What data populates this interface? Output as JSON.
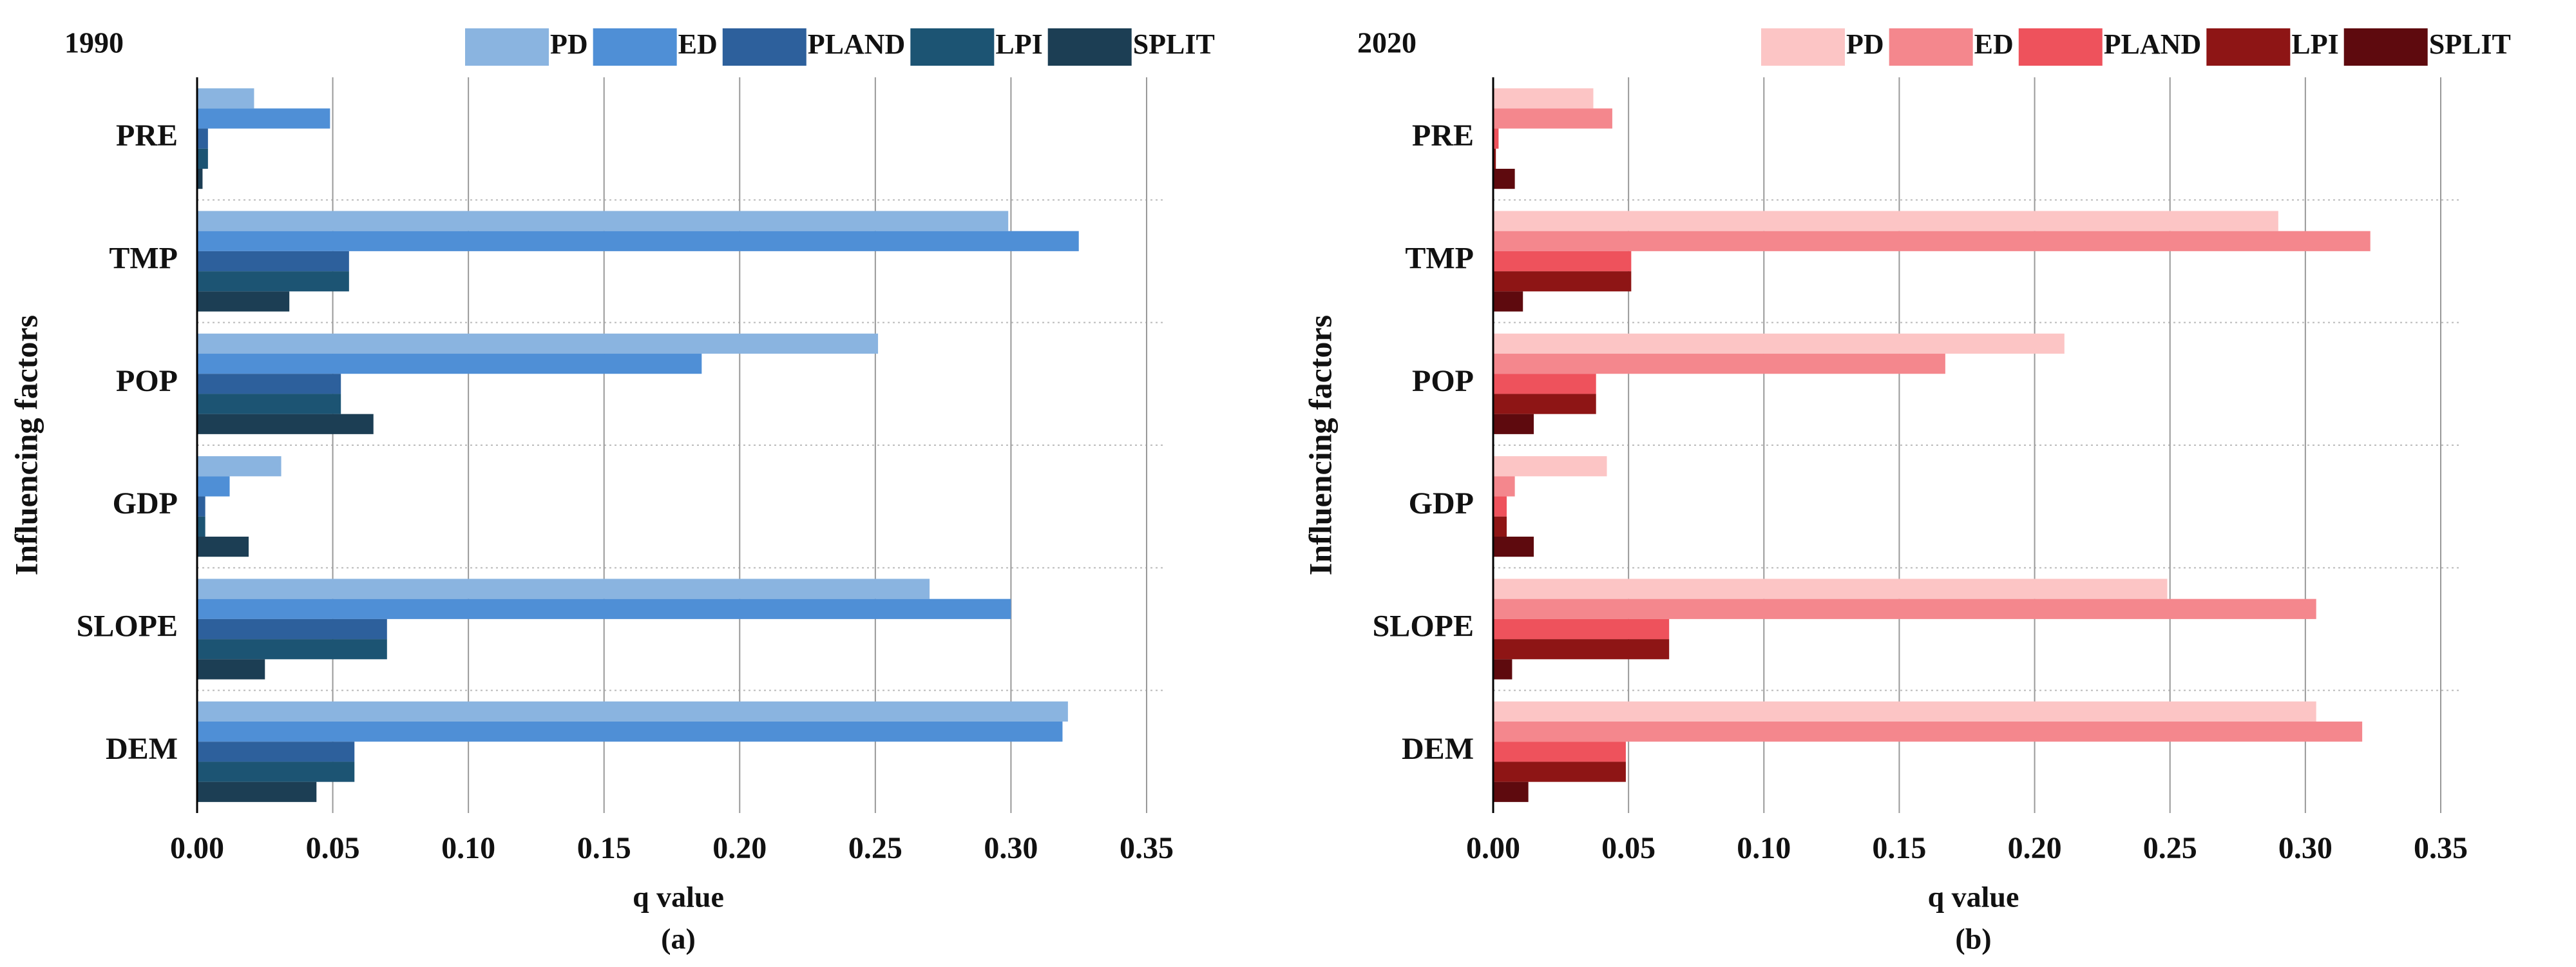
{
  "chart_data": [
    {
      "type": "bar",
      "orientation": "horizontal",
      "title": "1990",
      "caption": "(a)",
      "xlabel": "q value",
      "ylabel": "Influencing factors",
      "categories": [
        "PRE",
        "TMP",
        "POP",
        "GDP",
        "SLOPE",
        "DEM"
      ],
      "series": [
        {
          "name": "PD",
          "color": "#8ab4e0",
          "values": [
            0.021,
            0.299,
            0.251,
            0.031,
            0.27,
            0.321
          ]
        },
        {
          "name": "ED",
          "color": "#4f8fd6",
          "values": [
            0.049,
            0.325,
            0.186,
            0.012,
            0.3,
            0.319
          ]
        },
        {
          "name": "PLAND",
          "color": "#2d609c",
          "values": [
            0.004,
            0.056,
            0.053,
            0.003,
            0.07,
            0.058
          ]
        },
        {
          "name": "LPI",
          "color": "#1c5473",
          "values": [
            0.004,
            0.056,
            0.053,
            0.003,
            0.07,
            0.058
          ]
        },
        {
          "name": "SPLIT",
          "color": "#1c3e54",
          "values": [
            0.002,
            0.034,
            0.065,
            0.019,
            0.025,
            0.044
          ]
        }
      ],
      "xlim": [
        0,
        0.35
      ],
      "xticks": [
        {
          "value": 0,
          "label": "0.00"
        },
        {
          "value": 0.05,
          "label": "0.05"
        },
        {
          "value": 0.1,
          "label": "0.10"
        },
        {
          "value": 0.15,
          "label": "0.15"
        },
        {
          "value": 0.2,
          "label": "0.20"
        },
        {
          "value": 0.25,
          "label": "0.25"
        },
        {
          "value": 0.3,
          "label": "0.30"
        },
        {
          "value": 0.35,
          "label": "0.35"
        }
      ],
      "grid": true
    },
    {
      "type": "bar",
      "orientation": "horizontal",
      "title": "2020",
      "caption": "(b)",
      "xlabel": "q value",
      "ylabel": "Influencing factors",
      "categories": [
        "PRE",
        "TMP",
        "POP",
        "GDP",
        "SLOPE",
        "DEM"
      ],
      "series": [
        {
          "name": "PD",
          "color": "#fcc5c5",
          "values": [
            0.037,
            0.29,
            0.211,
            0.042,
            0.249,
            0.304
          ]
        },
        {
          "name": "ED",
          "color": "#f4878d",
          "values": [
            0.044,
            0.324,
            0.167,
            0.008,
            0.304,
            0.321
          ]
        },
        {
          "name": "PLAND",
          "color": "#ee525c",
          "values": [
            0.002,
            0.051,
            0.038,
            0.005,
            0.065,
            0.049
          ]
        },
        {
          "name": "LPI",
          "color": "#8e1515",
          "values": [
            0.001,
            0.051,
            0.038,
            0.005,
            0.065,
            0.049
          ]
        },
        {
          "name": "SPLIT",
          "color": "#5e0a0e",
          "values": [
            0.008,
            0.011,
            0.015,
            0.015,
            0.007,
            0.013
          ]
        }
      ],
      "xlim": [
        0,
        0.35
      ],
      "xticks": [
        {
          "value": 0,
          "label": "0.00"
        },
        {
          "value": 0.05,
          "label": "0.05"
        },
        {
          "value": 0.1,
          "label": "0.10"
        },
        {
          "value": 0.15,
          "label": "0.15"
        },
        {
          "value": 0.2,
          "label": "0.20"
        },
        {
          "value": 0.25,
          "label": "0.25"
        },
        {
          "value": 0.3,
          "label": "0.30"
        },
        {
          "value": 0.35,
          "label": "0.35"
        }
      ],
      "grid": true
    }
  ]
}
